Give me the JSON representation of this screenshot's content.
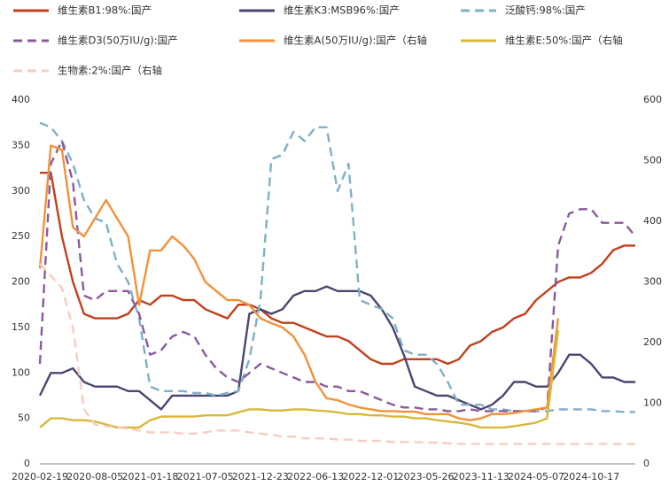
{
  "chart_data": {
    "type": "line",
    "categories": [
      "2020-02-19",
      null,
      null,
      null,
      null,
      "2020-08-05",
      null,
      null,
      null,
      null,
      "2021-01-18",
      null,
      null,
      null,
      null,
      "2021-07-05",
      null,
      null,
      null,
      null,
      "2021-12-23",
      null,
      null,
      null,
      null,
      "2022-06-13",
      null,
      null,
      null,
      null,
      "2022-12-01",
      null,
      null,
      null,
      null,
      "2023-05-26",
      null,
      null,
      null,
      null,
      "2023-11-13",
      null,
      null,
      null,
      null,
      "2024-05-07",
      null,
      null,
      null,
      null,
      "2024-10-17",
      null,
      null,
      null,
      null
    ],
    "ylim": [
      0,
      400
    ],
    "yticks": [
      0,
      50,
      100,
      150,
      200,
      250,
      300,
      350,
      400
    ],
    "y2lim": [
      0,
      600
    ],
    "y2ticks": [
      0,
      100,
      200,
      300,
      400,
      500,
      600
    ],
    "series": [
      {
        "name": "维生素B1:98%:国产",
        "color": "#c0401c",
        "dashed": false,
        "values": [
          320,
          320,
          250,
          200,
          165,
          160,
          160,
          160,
          165,
          180,
          175,
          185,
          185,
          180,
          180,
          170,
          165,
          160,
          175,
          175,
          170,
          160,
          155,
          155,
          150,
          145,
          140,
          140,
          135,
          125,
          115,
          110,
          110,
          115,
          115,
          115,
          115,
          110,
          115,
          130,
          135,
          145,
          150,
          160,
          165,
          180,
          190,
          200,
          205,
          205,
          210,
          220,
          235,
          240,
          240
        ]
      },
      {
        "name": "维生素K3:MSB96%:国产",
        "color": "#4a4670",
        "dashed": false,
        "values": [
          75,
          100,
          100,
          105,
          90,
          85,
          85,
          85,
          80,
          80,
          70,
          60,
          75,
          75,
          75,
          75,
          75,
          75,
          80,
          165,
          170,
          165,
          170,
          185,
          190,
          190,
          195,
          190,
          190,
          190,
          185,
          170,
          150,
          120,
          85,
          80,
          75,
          75,
          70,
          65,
          60,
          65,
          75,
          90,
          90,
          85,
          85,
          100,
          120,
          120,
          110,
          95,
          95,
          90,
          90
        ]
      },
      {
        "name": "泛酸钙:98%:国产",
        "color": "#7fb0c6",
        "dashed": true,
        "values": [
          375,
          370,
          355,
          330,
          290,
          270,
          265,
          220,
          200,
          160,
          85,
          80,
          80,
          80,
          78,
          78,
          75,
          78,
          80,
          115,
          180,
          335,
          340,
          365,
          355,
          370,
          370,
          300,
          330,
          180,
          175,
          170,
          160,
          125,
          120,
          120,
          110,
          90,
          65,
          65,
          65,
          60,
          60,
          58,
          58,
          58,
          58,
          60,
          60,
          60,
          60,
          58,
          58,
          57,
          57
        ]
      },
      {
        "name": "维生素D3(50万IU/g):国产",
        "color": "#8a5a9c",
        "dashed": true,
        "values": [
          110,
          330,
          355,
          310,
          185,
          180,
          190,
          190,
          190,
          165,
          120,
          125,
          140,
          145,
          140,
          120,
          105,
          95,
          90,
          100,
          110,
          105,
          100,
          95,
          90,
          90,
          85,
          85,
          80,
          80,
          75,
          70,
          65,
          62,
          62,
          60,
          60,
          58,
          58,
          60,
          58,
          58,
          58,
          58,
          58,
          58,
          62,
          240,
          275,
          280,
          280,
          265,
          265,
          265,
          250
        ]
      },
      {
        "name": "维生素A(50万IU/g):国产（右轴",
        "color": "#f0923a",
        "dashed": false,
        "axis": "y2",
        "values": [
          322,
          525,
          518,
          390,
          375,
          405,
          435,
          405,
          375,
          262,
          352,
          352,
          375,
          360,
          338,
          300,
          285,
          270,
          270,
          262,
          240,
          232,
          225,
          210,
          180,
          135,
          108,
          105,
          98,
          93,
          90,
          87,
          87,
          86,
          86,
          82,
          82,
          82,
          75,
          72,
          75,
          82,
          82,
          84,
          87,
          90,
          93,
          240,
          null,
          null,
          null,
          null,
          null,
          null,
          null
        ]
      },
      {
        "name": "维生素E:50%:国产（右轴",
        "color": "#d8b83a",
        "dashed": false,
        "axis": "y2",
        "values": [
          60,
          75,
          75,
          72,
          72,
          70,
          65,
          60,
          60,
          60,
          72,
          78,
          78,
          78,
          78,
          80,
          80,
          80,
          85,
          90,
          90,
          88,
          88,
          90,
          90,
          88,
          87,
          85,
          82,
          82,
          80,
          80,
          78,
          78,
          75,
          75,
          72,
          70,
          68,
          65,
          60,
          60,
          60,
          62,
          65,
          68,
          75,
          220,
          null,
          null,
          null,
          null,
          null,
          null,
          null
        ]
      },
      {
        "name": "生物素:2%:国产（右轴",
        "color": "#f7cdbf",
        "dashed": true,
        "axis": "y2",
        "values": [
          330,
          310,
          290,
          225,
          90,
          65,
          62,
          60,
          58,
          55,
          52,
          52,
          52,
          50,
          50,
          52,
          55,
          55,
          55,
          52,
          50,
          48,
          45,
          45,
          42,
          42,
          42,
          40,
          40,
          38,
          38,
          38,
          36,
          36,
          36,
          35,
          35,
          34,
          33,
          33,
          33,
          33,
          33,
          33,
          33,
          33,
          33,
          33,
          33,
          33,
          33,
          33,
          33,
          33,
          33
        ]
      }
    ]
  }
}
